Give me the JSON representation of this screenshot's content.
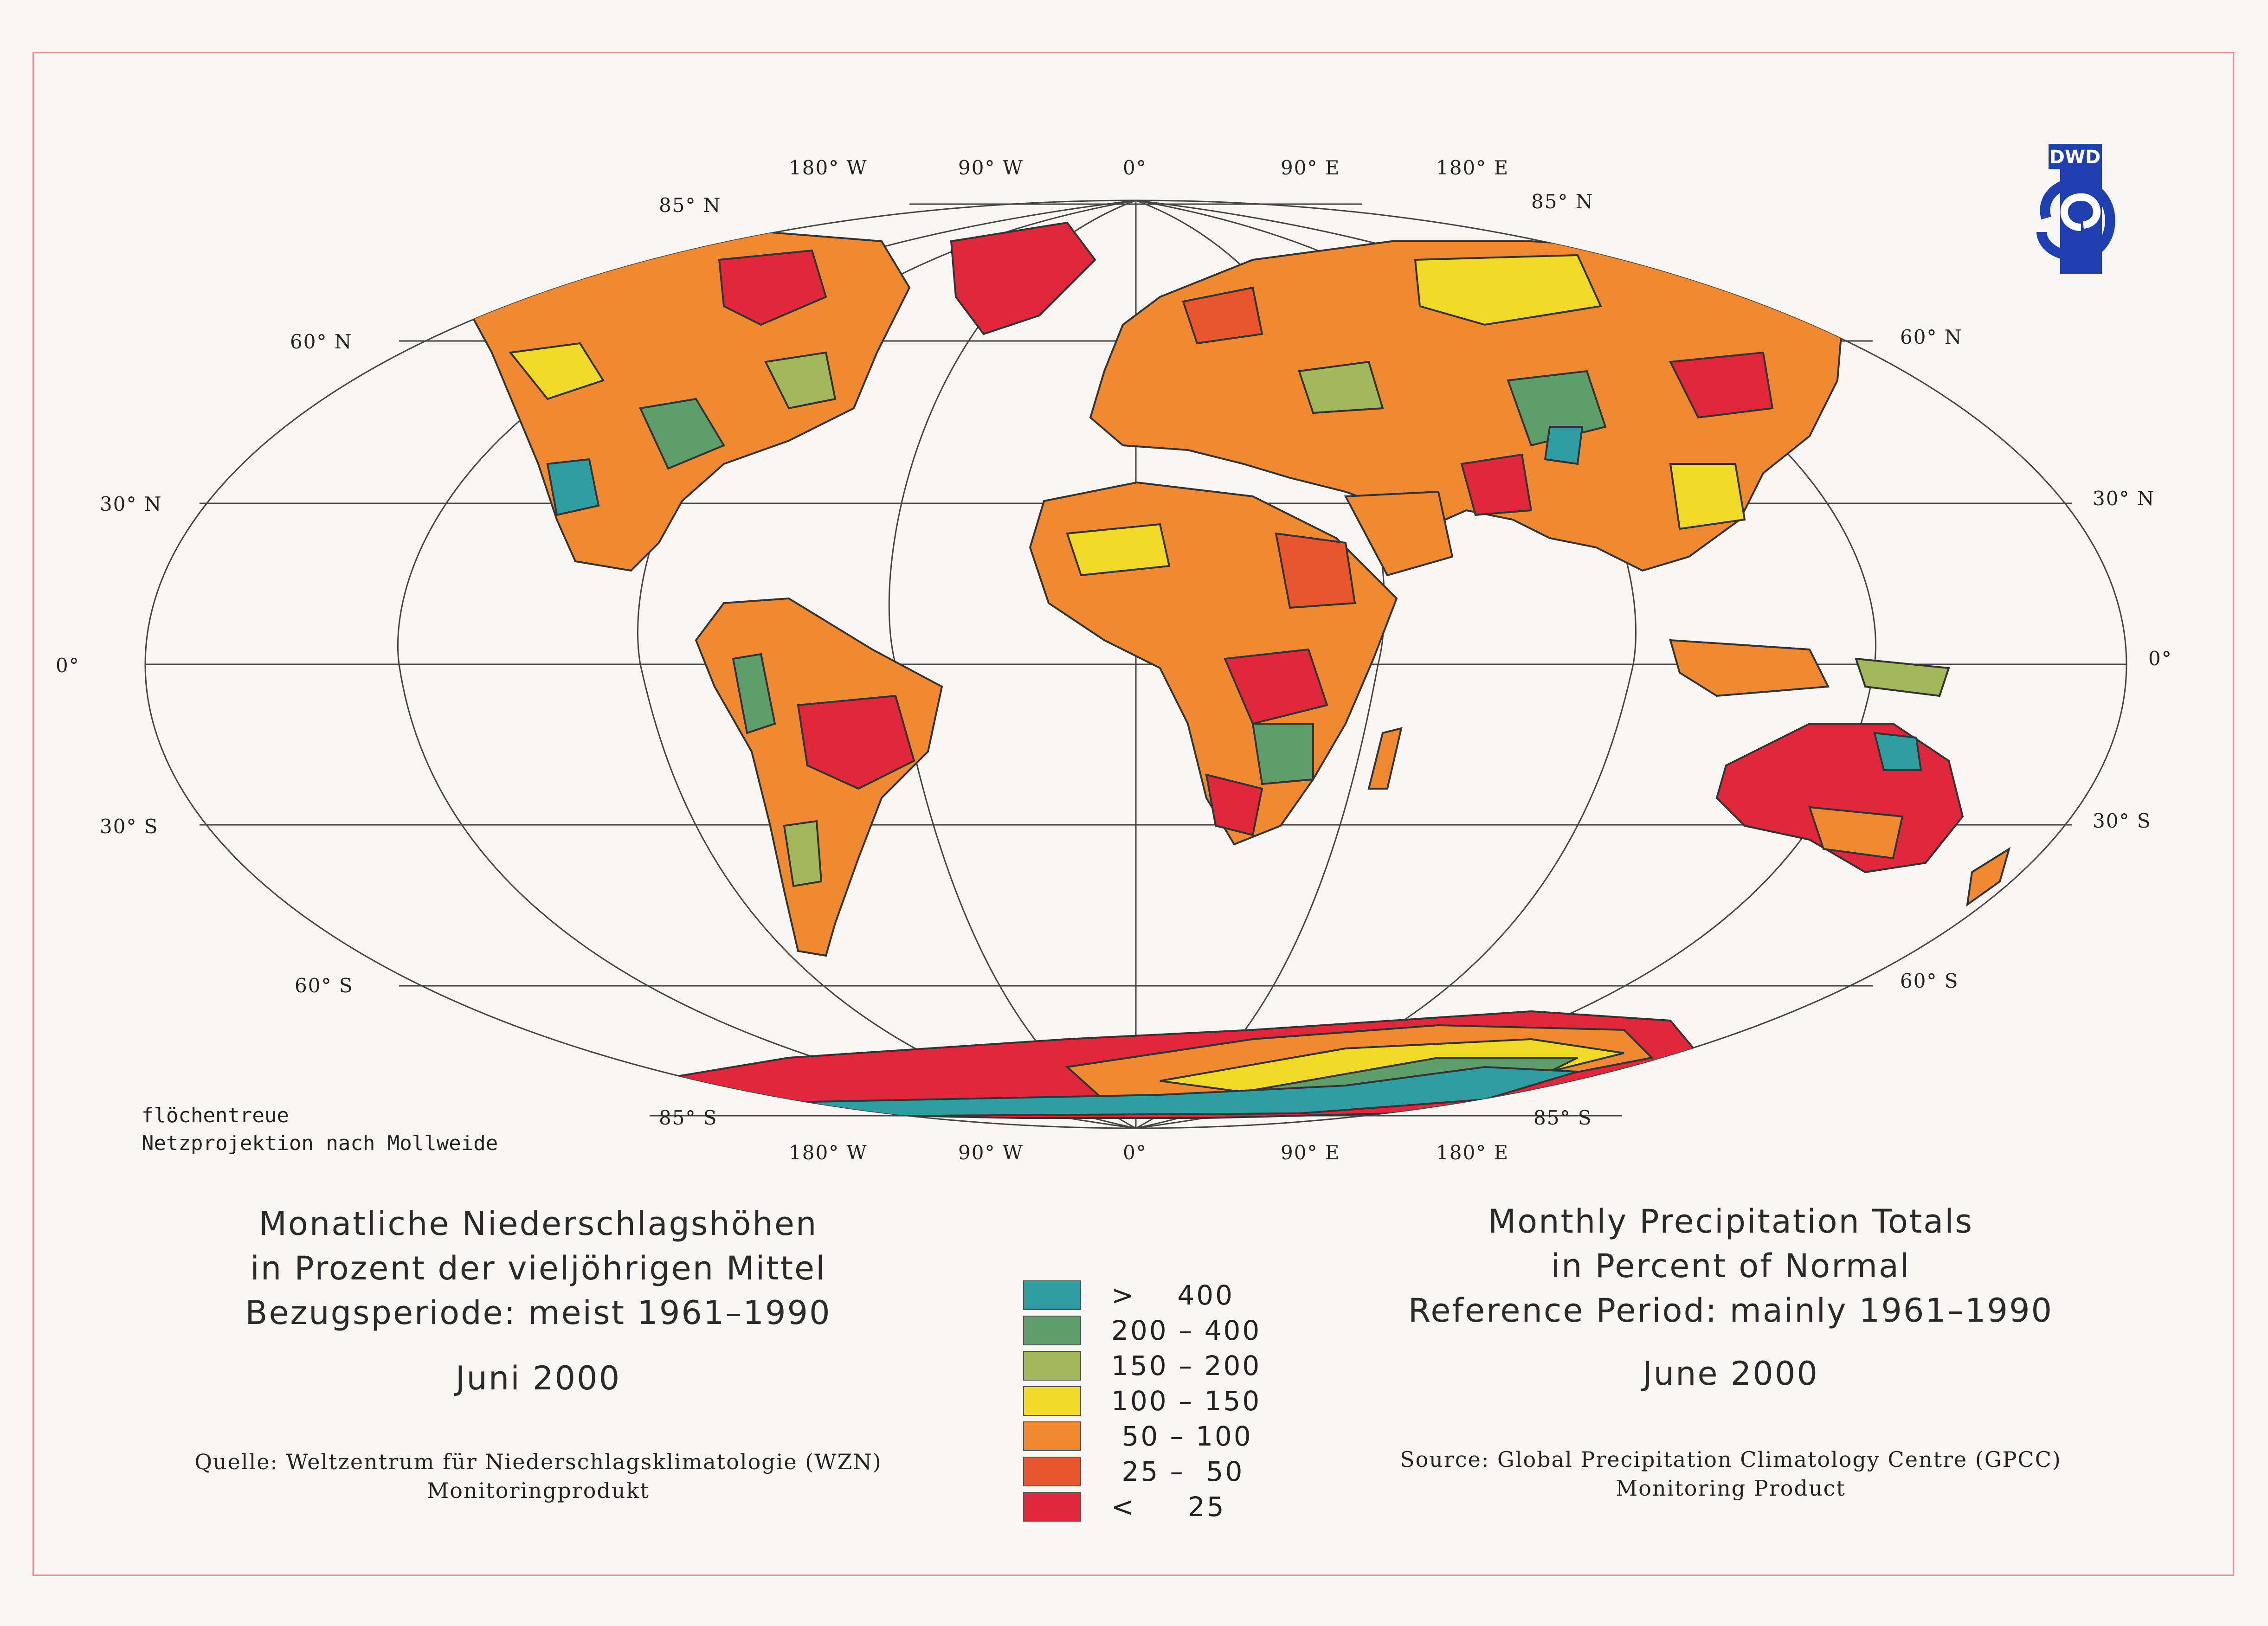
{
  "map": {
    "projection_note": [
      "flöchentreue",
      "Netzprojektion nach Mollweide"
    ],
    "top_longitudes": [
      "180° W",
      "90° W",
      "0°",
      "90° E",
      "180° E"
    ],
    "bottom_longitudes": [
      "180° W",
      "90° W",
      "0°",
      "90° E",
      "180° E"
    ],
    "latitudes": {
      "n85": "85° N",
      "n60": "60° N",
      "n30": "30° N",
      "eq": "0°",
      "s30": "30° S",
      "s60": "60° S",
      "s85": "85° S"
    }
  },
  "title_de": [
    "Monatliche Niederschlagshöhen",
    "in Prozent der vieljöhrigen Mittel",
    "Bezugsperiode: meist 1961–1990"
  ],
  "month_de": "Juni 2000",
  "source_de": [
    "Quelle: Weltzentrum für Niederschlagsklimatologie (WZN)",
    "Monitoringprodukt"
  ],
  "title_en": [
    "Monthly Precipitation Totals",
    "in Percent of Normal",
    "Reference Period: mainly 1961–1990"
  ],
  "month_en": "June 2000",
  "source_en": [
    "Source: Global Precipitation Climatology Centre (GPCC)",
    "Monitoring Product"
  ],
  "legend": [
    {
      "label": ">    400",
      "color": "#2f9ea3"
    },
    {
      "label": "200 – 400",
      "color": "#5f9e6a"
    },
    {
      "label": "150 – 200",
      "color": "#a3b85a"
    },
    {
      "label": "100 – 150",
      "color": "#f1d92a"
    },
    {
      "label": " 50 – 100",
      "color": "#f08a32"
    },
    {
      "label": " 25 –  50",
      "color": "#e9552f"
    },
    {
      "label": "<     25",
      "color": "#e1273b"
    }
  ],
  "logo_text": "DWD",
  "colors": {
    "frame": "#e98e93",
    "logo_blue": "#1f3fb0",
    "grid": "#333333"
  }
}
